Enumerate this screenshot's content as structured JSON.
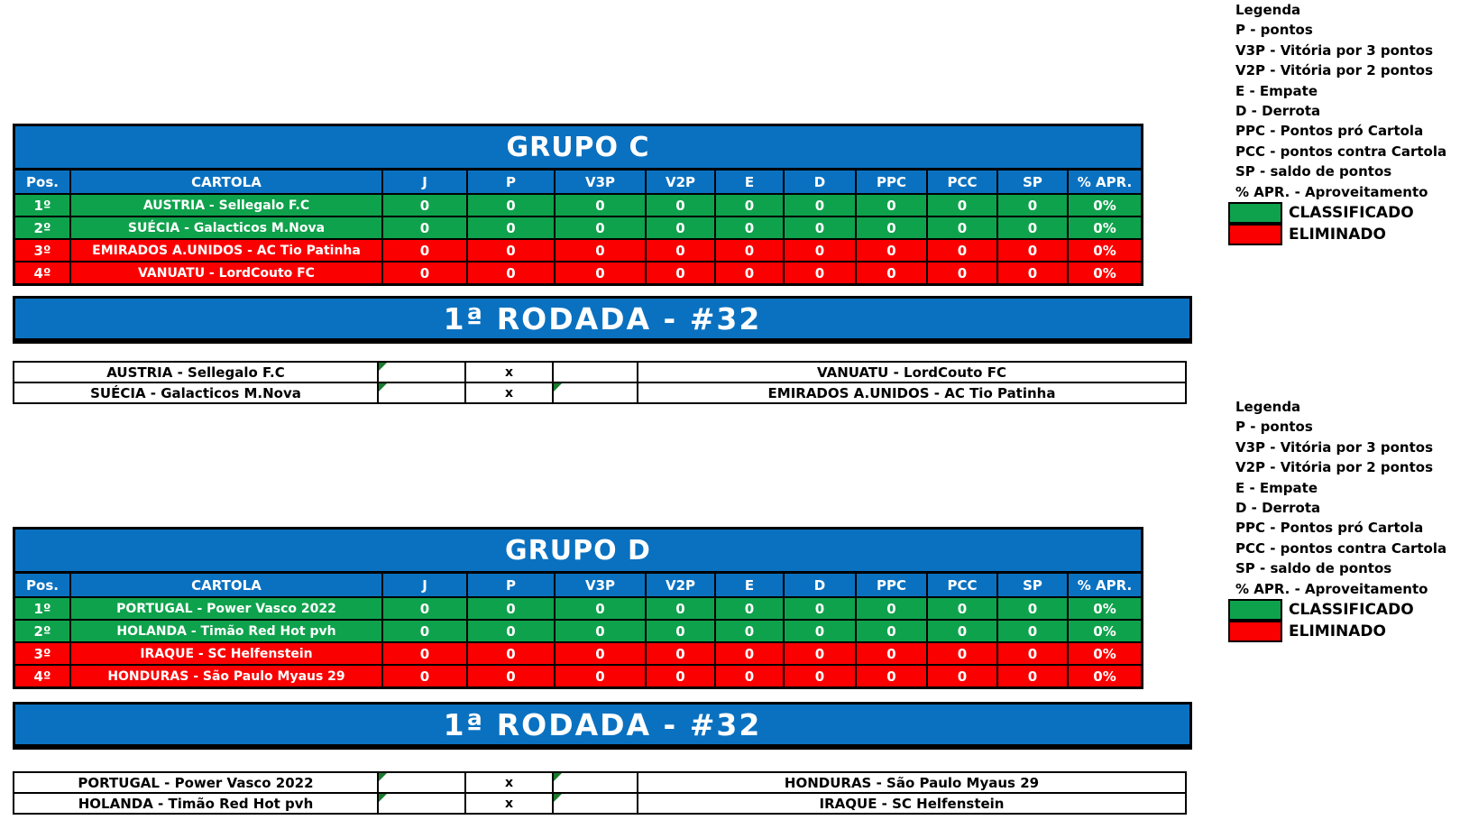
{
  "colors": {
    "blue": "#0a71c0",
    "green": "#0fa24c",
    "red": "#fb0000",
    "note": "#1a7a2e"
  },
  "legend": {
    "title": "Legenda",
    "items": [
      "P - pontos",
      "V3P - Vitória por 3 pontos",
      "V2P - Vitória por 2 pontos",
      "E - Empate",
      "D - Derrota",
      "PPC - Pontos pró Cartola",
      "PCC - pontos contra Cartola",
      "SP - saldo de pontos",
      "% APR. - Aproveitamento"
    ],
    "classified_label": "CLASSIFICADO",
    "eliminated_label": "ELIMINADO"
  },
  "columns": [
    "Pos.",
    "CARTOLA",
    "J",
    "P",
    "V3P",
    "V2P",
    "E",
    "D",
    "PPC",
    "PCC",
    "SP",
    "% APR."
  ],
  "groups": [
    {
      "title": "GRUPO C",
      "rows": [
        {
          "pos": "1º",
          "team": "AUSTRIA - Sellegalo F.C",
          "status": "classified",
          "values": [
            "0",
            "0",
            "0",
            "0",
            "0",
            "0",
            "0",
            "0",
            "0",
            "0%"
          ]
        },
        {
          "pos": "2º",
          "team": "SUÉCIA - Galacticos M.Nova",
          "status": "classified",
          "values": [
            "0",
            "0",
            "0",
            "0",
            "0",
            "0",
            "0",
            "0",
            "0",
            "0%"
          ]
        },
        {
          "pos": "3º",
          "team": "EMIRADOS A.UNIDOS - AC Tio Patinha",
          "status": "eliminated",
          "values": [
            "0",
            "0",
            "0",
            "0",
            "0",
            "0",
            "0",
            "0",
            "0",
            "0%"
          ]
        },
        {
          "pos": "4º",
          "team": "VANUATU - LordCouto FC",
          "status": "eliminated",
          "values": [
            "0",
            "0",
            "0",
            "0",
            "0",
            "0",
            "0",
            "0",
            "0",
            "0%"
          ]
        }
      ],
      "round": {
        "title": "1ª RODADA - #32",
        "matches": [
          {
            "home": "AUSTRIA - Sellegalo F.C",
            "divider": "x",
            "away": "VANUATU - LordCouto FC",
            "home_note": true,
            "away_note": false
          },
          {
            "home": "SUÉCIA - Galacticos M.Nova",
            "divider": "x",
            "away": "EMIRADOS A.UNIDOS - AC Tio Patinha",
            "home_note": true,
            "away_note": true
          }
        ]
      }
    },
    {
      "title": "GRUPO D",
      "rows": [
        {
          "pos": "1º",
          "team": "PORTUGAL - Power Vasco 2022",
          "status": "classified",
          "values": [
            "0",
            "0",
            "0",
            "0",
            "0",
            "0",
            "0",
            "0",
            "0",
            "0%"
          ]
        },
        {
          "pos": "2º",
          "team": "HOLANDA - Timão Red Hot pvh",
          "status": "classified",
          "values": [
            "0",
            "0",
            "0",
            "0",
            "0",
            "0",
            "0",
            "0",
            "0",
            "0%"
          ]
        },
        {
          "pos": "3º",
          "team": "IRAQUE - SC Helfenstein",
          "status": "eliminated",
          "values": [
            "0",
            "0",
            "0",
            "0",
            "0",
            "0",
            "0",
            "0",
            "0",
            "0%"
          ]
        },
        {
          "pos": "4º",
          "team": "HONDURAS - São Paulo Myaus 29",
          "status": "eliminated",
          "values": [
            "0",
            "0",
            "0",
            "0",
            "0",
            "0",
            "0",
            "0",
            "0",
            "0%"
          ]
        }
      ],
      "round": {
        "title": "1ª RODADA - #32",
        "matches": [
          {
            "home": "PORTUGAL - Power Vasco 2022",
            "divider": "x",
            "away": "HONDURAS - São Paulo Myaus 29",
            "home_note": true,
            "away_note": true
          },
          {
            "home": "HOLANDA - Timão Red Hot pvh",
            "divider": "x",
            "away": "IRAQUE - SC Helfenstein",
            "home_note": true,
            "away_note": true
          }
        ]
      }
    }
  ]
}
